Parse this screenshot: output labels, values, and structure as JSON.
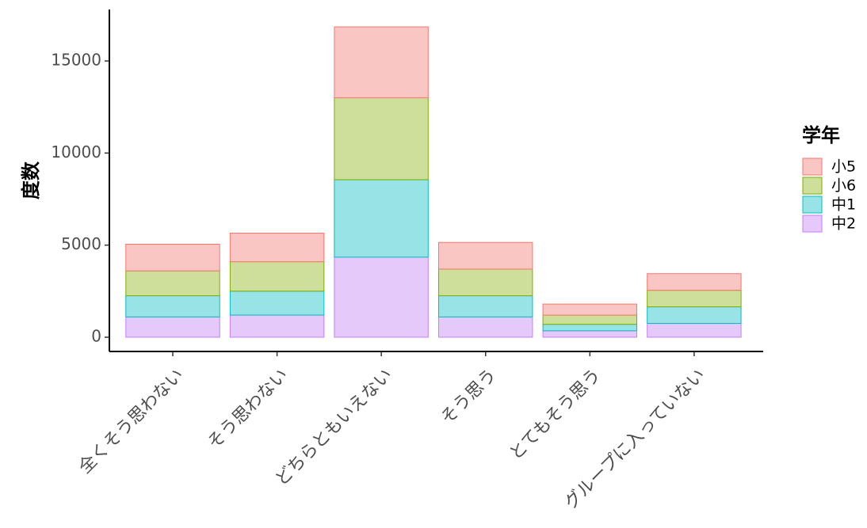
{
  "chart_data": {
    "type": "bar",
    "stacked": true,
    "categories": [
      "全くそう思わない",
      "そう思わない",
      "どちらともいえない",
      "そう思う",
      "とてもそう思う",
      "グループに入っていない"
    ],
    "series": [
      {
        "name": "中2",
        "values": [
          1100,
          1200,
          4350,
          1100,
          350,
          750
        ],
        "fill": "#e6c9fb",
        "stroke": "#c77cff"
      },
      {
        "name": "中1",
        "values": [
          1150,
          1300,
          4200,
          1150,
          350,
          900
        ],
        "fill": "#98e3e6",
        "stroke": "#00bfc4"
      },
      {
        "name": "小6",
        "values": [
          1350,
          1600,
          4450,
          1450,
          500,
          900
        ],
        "fill": "#cddf9a",
        "stroke": "#7cae00"
      },
      {
        "name": "小5",
        "values": [
          1450,
          1550,
          3850,
          1450,
          600,
          900
        ],
        "fill": "#f9c6c3",
        "stroke": "#f8766d"
      }
    ],
    "xlabel": "",
    "ylabel": "度数",
    "ylim": [
      0,
      17000
    ],
    "yticks": [
      0,
      5000,
      10000,
      15000
    ],
    "grid": false,
    "legend": {
      "title": "学年",
      "position": "right",
      "entries": [
        "小5",
        "小6",
        "中1",
        "中2"
      ]
    }
  }
}
